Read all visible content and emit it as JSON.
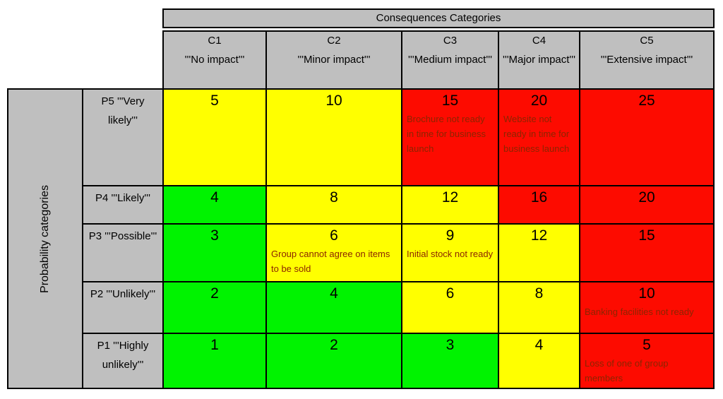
{
  "banner": {
    "title": "Consequences Categories"
  },
  "left_axis": {
    "label": "Probability categories"
  },
  "colors": {
    "header_bg": "#bfbfbf",
    "green": "#00f300",
    "yellow": "#ffff00",
    "red": "#fd0b00",
    "border": "#000000",
    "note_text": "#8b2500"
  },
  "columns": [
    {
      "code": "C1",
      "label": "'''No impact'''"
    },
    {
      "code": "C2",
      "label": "'''Minor impact'''"
    },
    {
      "code": "C3",
      "label": "'''Medium impact'''"
    },
    {
      "code": "C4",
      "label": "'''Major impact'''"
    },
    {
      "code": "C5",
      "label": "'''Extensive impact'''"
    }
  ],
  "rows": [
    {
      "header": "P5 '''Very likely'''",
      "cells": [
        {
          "value": "5",
          "level": "yellow",
          "note": ""
        },
        {
          "value": "10",
          "level": "yellow",
          "note": ""
        },
        {
          "value": "15",
          "level": "red",
          "note": "Brochure not ready in time for business launch"
        },
        {
          "value": "20",
          "level": "red",
          "note": "Website not ready in time for business launch"
        },
        {
          "value": "25",
          "level": "red",
          "note": ""
        }
      ]
    },
    {
      "header": "P4 '''Likely'''",
      "cells": [
        {
          "value": "4",
          "level": "green",
          "note": ""
        },
        {
          "value": "8",
          "level": "yellow",
          "note": ""
        },
        {
          "value": "12",
          "level": "yellow",
          "note": ""
        },
        {
          "value": "16",
          "level": "red",
          "note": ""
        },
        {
          "value": "20",
          "level": "red",
          "note": ""
        }
      ]
    },
    {
      "header": "P3 '''Possible'''",
      "cells": [
        {
          "value": "3",
          "level": "green",
          "note": ""
        },
        {
          "value": "6",
          "level": "yellow",
          "note": "Group cannot agree on items to be sold"
        },
        {
          "value": "9",
          "level": "yellow",
          "note": "Initial stock not ready"
        },
        {
          "value": "12",
          "level": "yellow",
          "note": ""
        },
        {
          "value": "15",
          "level": "red",
          "note": ""
        }
      ]
    },
    {
      "header": "P2 '''Unlikely'''",
      "cells": [
        {
          "value": "2",
          "level": "green",
          "note": ""
        },
        {
          "value": "4",
          "level": "green",
          "note": ""
        },
        {
          "value": "6",
          "level": "yellow",
          "note": ""
        },
        {
          "value": "8",
          "level": "yellow",
          "note": ""
        },
        {
          "value": "10",
          "level": "red",
          "note": "Banking facilities not ready"
        }
      ]
    },
    {
      "header": "P1 '''Highly unlikely'''",
      "cells": [
        {
          "value": "1",
          "level": "green",
          "note": ""
        },
        {
          "value": "2",
          "level": "green",
          "note": ""
        },
        {
          "value": "3",
          "level": "green",
          "note": ""
        },
        {
          "value": "4",
          "level": "yellow",
          "note": ""
        },
        {
          "value": "5",
          "level": "red",
          "note": "Loss of one of group members"
        }
      ]
    }
  ]
}
